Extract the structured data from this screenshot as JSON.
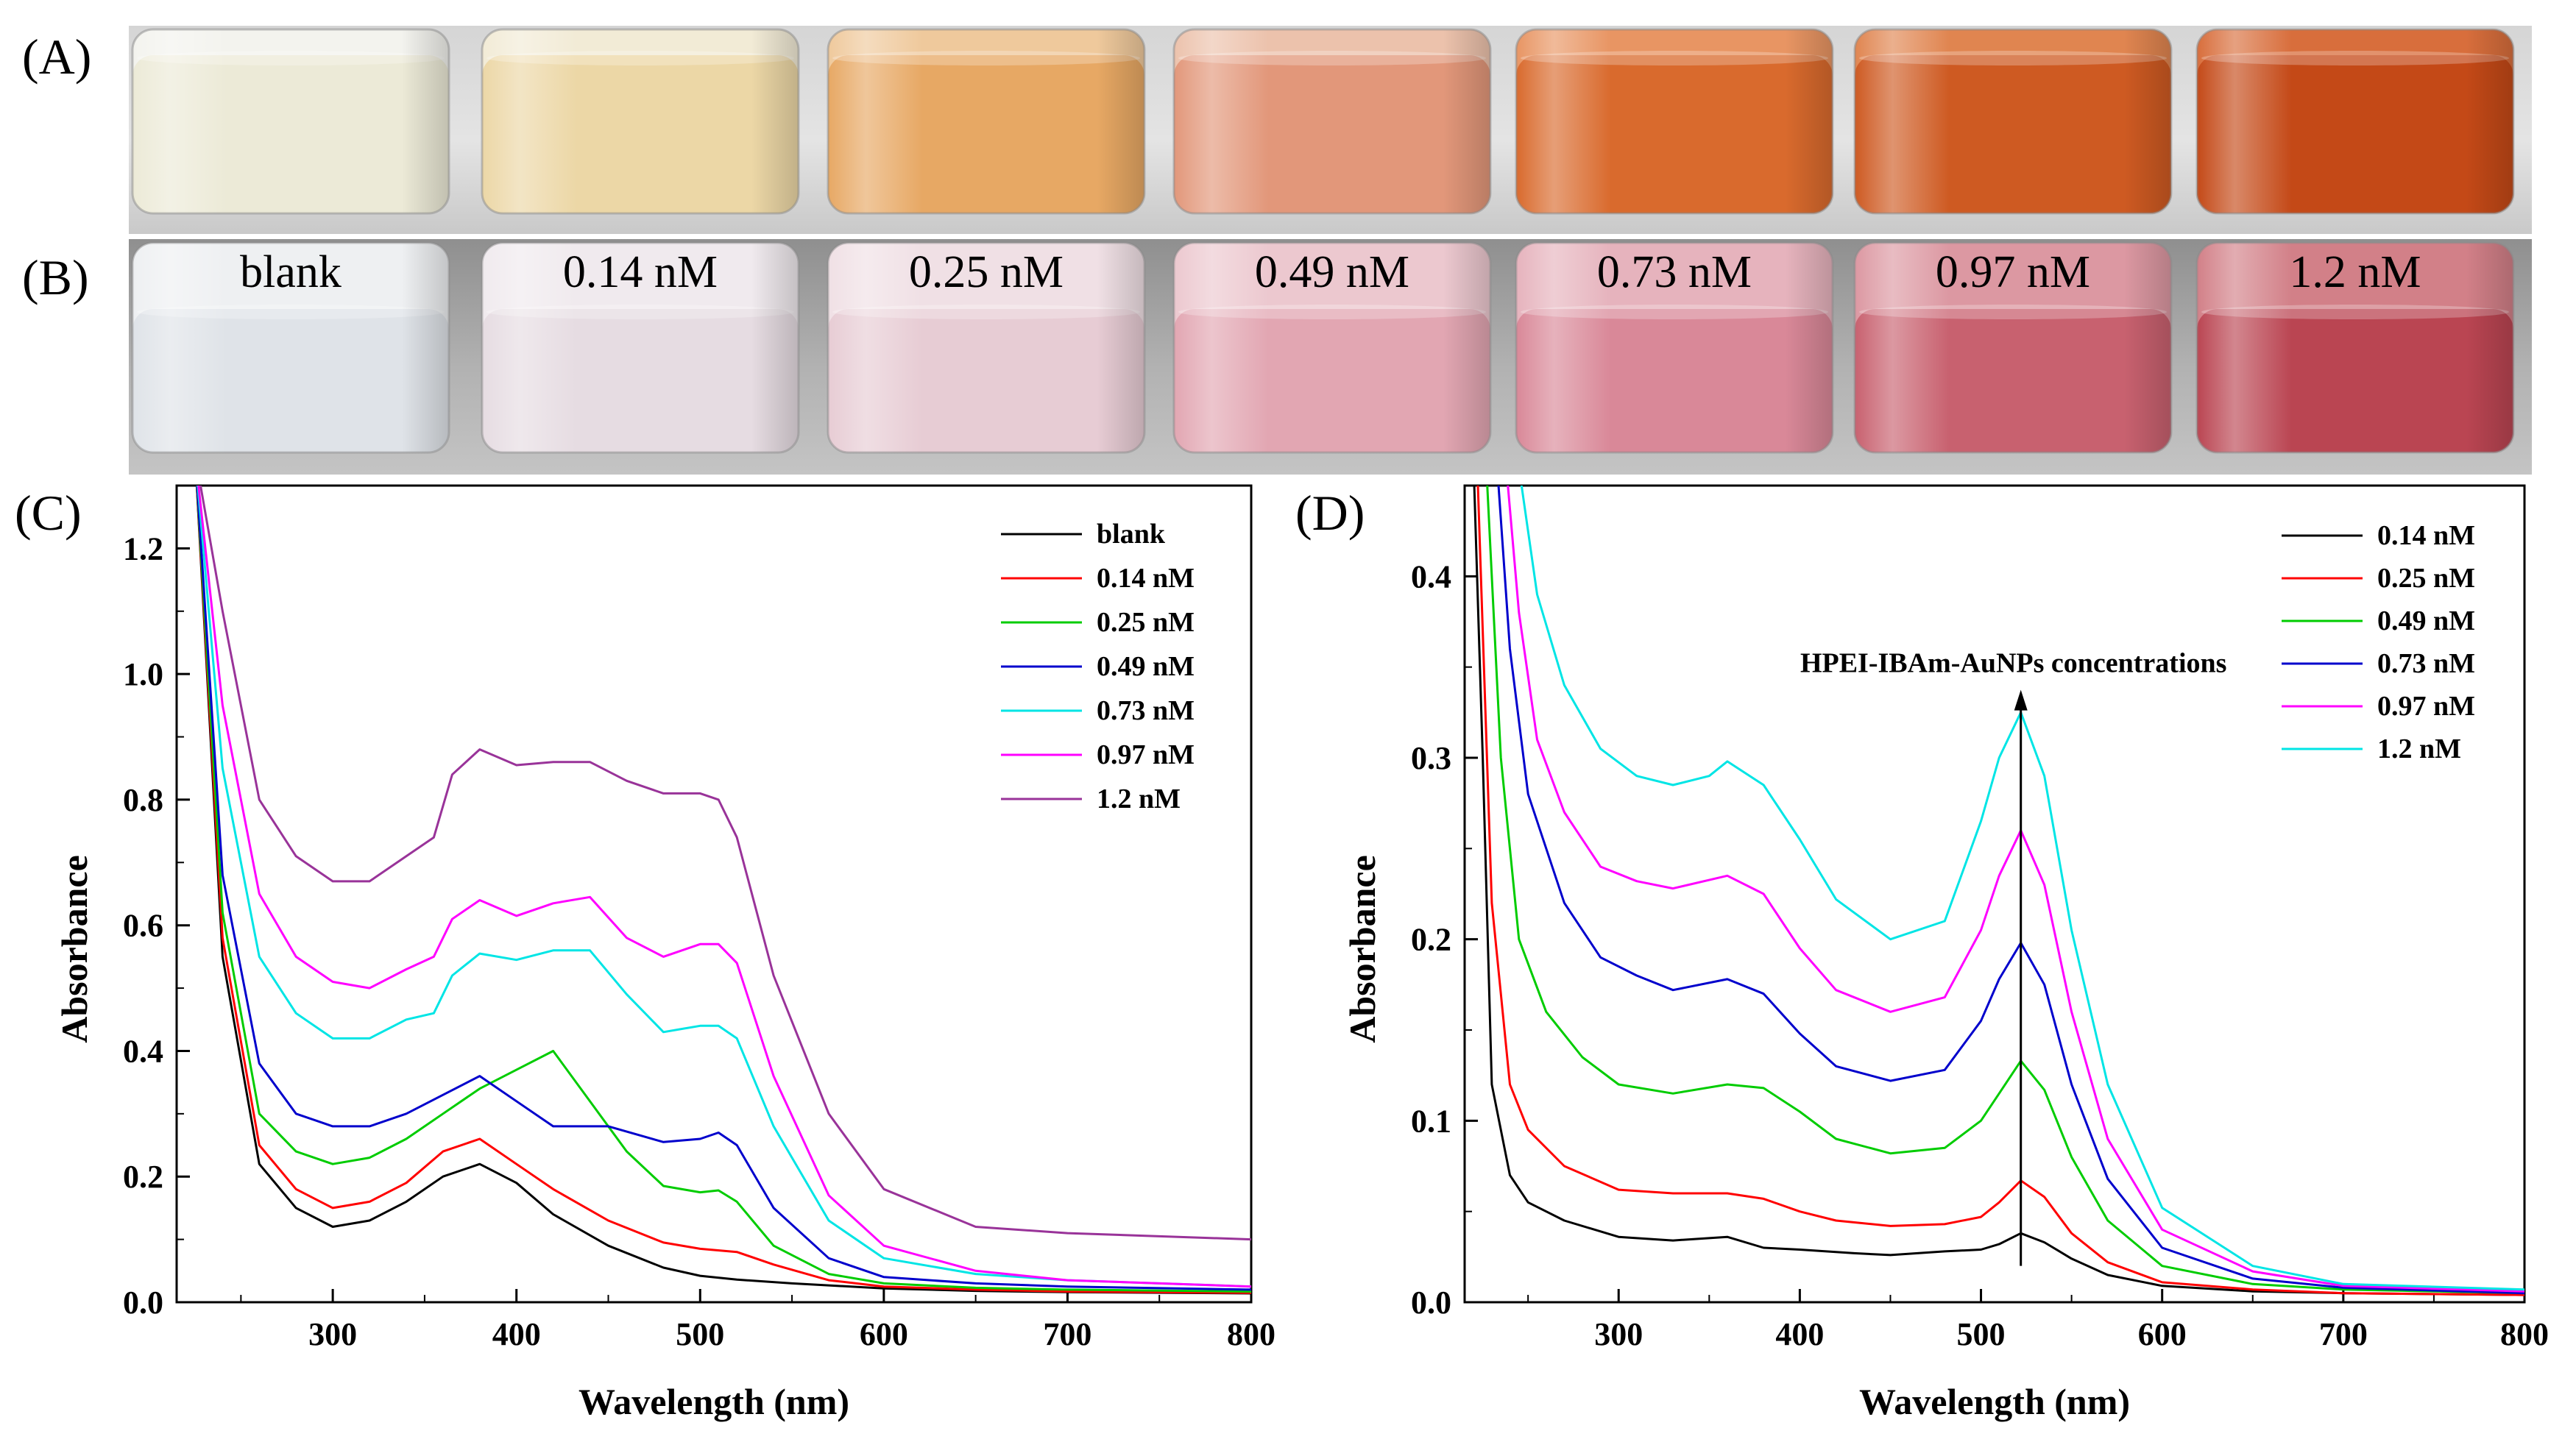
{
  "photo_panels": [
    {
      "letter": "(A)",
      "labels": [],
      "vials": [
        {
          "liquid": "#ecead7",
          "glass": "#f3f3ee"
        },
        {
          "liquid": "#ecd7a6",
          "glass": "#f2ebd6"
        },
        {
          "liquid": "#e7a864",
          "glass": "#efc99c"
        },
        {
          "liquid": "#e2977a",
          "glass": "#ecc2ac"
        },
        {
          "liquid": "#d96a2d",
          "glass": "#e89563"
        },
        {
          "liquid": "#ce5a22",
          "glass": "#e08550"
        },
        {
          "liquid": "#c44917",
          "glass": "#d86e3c"
        }
      ]
    },
    {
      "letter": "(B)",
      "labels": [
        "blank",
        "0.14 nM",
        "0.25 nM",
        "0.49 nM",
        "0.73 nM",
        "0.97 nM",
        "1.2 nM"
      ],
      "vials": [
        {
          "liquid": "#dfe3e8",
          "glass": "#eef0f2"
        },
        {
          "liquid": "#e6dce2",
          "glass": "#f0eaee"
        },
        {
          "liquid": "#e7ccd4",
          "glass": "#f0e0e5"
        },
        {
          "liquid": "#e2a6b2",
          "glass": "#ecc8cf"
        },
        {
          "liquid": "#d98898",
          "glass": "#e6b3bd"
        },
        {
          "liquid": "#c8616f",
          "glass": "#dc98a2"
        },
        {
          "liquid": "#ba4552",
          "glass": "#d28088"
        }
      ]
    }
  ],
  "chart_data": [
    {
      "panel": "(C)",
      "type": "line",
      "xlabel": "Wavelength (nm)",
      "ylabel": "Absorbance",
      "xlim": [
        215,
        800
      ],
      "ylim": [
        0.0,
        1.3
      ],
      "xticks": [
        300,
        400,
        500,
        600,
        700,
        800
      ],
      "yticks": [
        0.0,
        0.2,
        0.4,
        0.6,
        0.8,
        1.0,
        1.2
      ],
      "ytick_labels": [
        "0.0",
        "0.2",
        "0.4",
        "0.6",
        "0.8",
        "1.0",
        "1.2"
      ],
      "xtick_labels": [
        "300",
        "400",
        "500",
        "600",
        "700",
        "800"
      ],
      "legend_position": "top-right",
      "series": [
        {
          "name": "blank",
          "color": "#000000",
          "x": [
            225,
            240,
            260,
            280,
            300,
            320,
            340,
            360,
            380,
            400,
            420,
            450,
            480,
            500,
            520,
            550,
            600,
            650,
            700,
            800
          ],
          "y": [
            1.35,
            0.55,
            0.22,
            0.15,
            0.12,
            0.13,
            0.16,
            0.2,
            0.22,
            0.19,
            0.14,
            0.09,
            0.055,
            0.042,
            0.036,
            0.03,
            0.022,
            0.018,
            0.016,
            0.014
          ]
        },
        {
          "name": "0.14 nM",
          "color": "#ff0000",
          "x": [
            225,
            240,
            260,
            280,
            300,
            320,
            340,
            360,
            380,
            400,
            420,
            450,
            480,
            500,
            520,
            540,
            570,
            600,
            650,
            700,
            800
          ],
          "y": [
            1.35,
            0.58,
            0.25,
            0.18,
            0.15,
            0.16,
            0.19,
            0.24,
            0.26,
            0.22,
            0.18,
            0.13,
            0.095,
            0.085,
            0.08,
            0.06,
            0.035,
            0.025,
            0.02,
            0.017,
            0.015
          ]
        },
        {
          "name": "0.25 nM",
          "color": "#00cc00",
          "x": [
            225,
            240,
            260,
            280,
            300,
            320,
            340,
            360,
            380,
            400,
            420,
            440,
            460,
            480,
            500,
            510,
            520,
            540,
            570,
            600,
            650,
            700,
            800
          ],
          "y": [
            1.35,
            0.62,
            0.3,
            0.24,
            0.22,
            0.23,
            0.26,
            0.3,
            0.34,
            0.37,
            0.4,
            0.32,
            0.24,
            0.185,
            0.175,
            0.178,
            0.16,
            0.09,
            0.045,
            0.03,
            0.023,
            0.02,
            0.017
          ]
        },
        {
          "name": "0.49 nM",
          "color": "#0000cc",
          "x": [
            225,
            240,
            260,
            280,
            300,
            320,
            340,
            360,
            380,
            400,
            420,
            450,
            480,
            500,
            510,
            520,
            540,
            570,
            600,
            650,
            700,
            800
          ],
          "y": [
            1.35,
            0.68,
            0.38,
            0.3,
            0.28,
            0.28,
            0.3,
            0.33,
            0.36,
            0.32,
            0.28,
            0.28,
            0.255,
            0.26,
            0.27,
            0.25,
            0.15,
            0.07,
            0.04,
            0.03,
            0.025,
            0.02
          ]
        },
        {
          "name": "0.73 nM",
          "color": "#00e5e5",
          "x": [
            225,
            240,
            260,
            280,
            300,
            320,
            340,
            355,
            365,
            380,
            400,
            420,
            440,
            460,
            480,
            500,
            510,
            520,
            540,
            570,
            600,
            650,
            700,
            800
          ],
          "y": [
            1.35,
            0.85,
            0.55,
            0.46,
            0.42,
            0.42,
            0.45,
            0.46,
            0.52,
            0.555,
            0.545,
            0.56,
            0.56,
            0.49,
            0.43,
            0.44,
            0.44,
            0.42,
            0.28,
            0.13,
            0.07,
            0.045,
            0.035,
            0.025
          ]
        },
        {
          "name": "0.97 nM",
          "color": "#ff00ff",
          "x": [
            225,
            240,
            260,
            280,
            300,
            320,
            340,
            355,
            365,
            380,
            400,
            420,
            440,
            460,
            480,
            500,
            510,
            520,
            540,
            570,
            600,
            650,
            700,
            800
          ],
          "y": [
            1.35,
            0.95,
            0.65,
            0.55,
            0.51,
            0.5,
            0.53,
            0.55,
            0.61,
            0.64,
            0.615,
            0.635,
            0.645,
            0.58,
            0.55,
            0.57,
            0.57,
            0.54,
            0.36,
            0.17,
            0.09,
            0.05,
            0.035,
            0.025
          ]
        },
        {
          "name": "1.2 nM",
          "color": "#993399",
          "x": [
            225,
            240,
            260,
            280,
            300,
            320,
            340,
            355,
            365,
            380,
            400,
            420,
            440,
            460,
            480,
            500,
            510,
            520,
            540,
            570,
            600,
            650,
            700,
            800
          ],
          "y": [
            1.35,
            1.1,
            0.8,
            0.71,
            0.67,
            0.67,
            0.71,
            0.74,
            0.84,
            0.88,
            0.855,
            0.86,
            0.86,
            0.83,
            0.81,
            0.81,
            0.8,
            0.74,
            0.52,
            0.3,
            0.18,
            0.12,
            0.11,
            0.1
          ]
        }
      ]
    },
    {
      "panel": "(D)",
      "type": "line",
      "xlabel": "Wavelength (nm)",
      "ylabel": "Absorbance",
      "xlim": [
        215,
        800
      ],
      "ylim": [
        0.0,
        0.45
      ],
      "xticks": [
        300,
        400,
        500,
        600,
        700,
        800
      ],
      "yticks": [
        0.0,
        0.1,
        0.2,
        0.3,
        0.4
      ],
      "ytick_labels": [
        "0.0",
        "0.1",
        "0.2",
        "0.3",
        "0.4"
      ],
      "xtick_labels": [
        "300",
        "400",
        "500",
        "600",
        "700",
        "800"
      ],
      "legend_position": "top-right",
      "annotation": {
        "text": "HPEI-IBAm-AuNPs concentrations",
        "x": 522,
        "y_from": 0.02,
        "y_to": 0.335
      },
      "series": [
        {
          "name": "0.14 nM",
          "color": "#000000",
          "x": [
            220,
            225,
            230,
            240,
            250,
            270,
            300,
            330,
            360,
            380,
            400,
            430,
            450,
            480,
            500,
            510,
            522,
            535,
            550,
            570,
            600,
            650,
            700,
            800
          ],
          "y": [
            0.46,
            0.3,
            0.12,
            0.07,
            0.055,
            0.045,
            0.036,
            0.034,
            0.036,
            0.03,
            0.029,
            0.027,
            0.026,
            0.028,
            0.029,
            0.032,
            0.038,
            0.033,
            0.024,
            0.015,
            0.009,
            0.006,
            0.005,
            0.004
          ]
        },
        {
          "name": "0.25 nM",
          "color": "#ff0000",
          "x": [
            222,
            230,
            240,
            250,
            270,
            300,
            330,
            360,
            380,
            400,
            420,
            450,
            480,
            500,
            510,
            522,
            535,
            550,
            570,
            600,
            650,
            700,
            800
          ],
          "y": [
            0.46,
            0.22,
            0.12,
            0.095,
            0.075,
            0.062,
            0.06,
            0.06,
            0.057,
            0.05,
            0.045,
            0.042,
            0.043,
            0.047,
            0.055,
            0.067,
            0.058,
            0.038,
            0.022,
            0.011,
            0.007,
            0.005,
            0.004
          ]
        },
        {
          "name": "0.49 nM",
          "color": "#00cc00",
          "x": [
            227,
            235,
            245,
            260,
            280,
            300,
            330,
            360,
            380,
            400,
            420,
            450,
            480,
            500,
            510,
            522,
            535,
            550,
            570,
            600,
            650,
            700,
            800
          ],
          "y": [
            0.46,
            0.3,
            0.2,
            0.16,
            0.135,
            0.12,
            0.115,
            0.12,
            0.118,
            0.105,
            0.09,
            0.082,
            0.085,
            0.1,
            0.115,
            0.133,
            0.117,
            0.08,
            0.045,
            0.02,
            0.01,
            0.007,
            0.005
          ]
        },
        {
          "name": "0.73 nM",
          "color": "#0000cc",
          "x": [
            233,
            240,
            250,
            270,
            290,
            310,
            330,
            360,
            380,
            400,
            420,
            450,
            480,
            500,
            510,
            522,
            535,
            550,
            570,
            600,
            650,
            700,
            800
          ],
          "y": [
            0.46,
            0.36,
            0.28,
            0.22,
            0.19,
            0.18,
            0.172,
            0.178,
            0.17,
            0.148,
            0.13,
            0.122,
            0.128,
            0.155,
            0.178,
            0.198,
            0.175,
            0.12,
            0.068,
            0.03,
            0.013,
            0.008,
            0.005
          ]
        },
        {
          "name": "0.97 nM",
          "color": "#ff00ff",
          "x": [
            238,
            245,
            255,
            270,
            290,
            310,
            330,
            360,
            380,
            400,
            420,
            450,
            480,
            500,
            510,
            522,
            535,
            550,
            570,
            600,
            650,
            700,
            800
          ],
          "y": [
            0.46,
            0.38,
            0.31,
            0.27,
            0.24,
            0.232,
            0.228,
            0.235,
            0.225,
            0.195,
            0.172,
            0.16,
            0.168,
            0.205,
            0.235,
            0.26,
            0.23,
            0.16,
            0.09,
            0.04,
            0.017,
            0.009,
            0.006
          ]
        },
        {
          "name": "1.2 nM",
          "color": "#00e5e5",
          "x": [
            245,
            255,
            270,
            290,
            310,
            330,
            350,
            360,
            380,
            400,
            420,
            450,
            480,
            500,
            510,
            522,
            535,
            550,
            570,
            600,
            650,
            700,
            800
          ],
          "y": [
            0.46,
            0.39,
            0.34,
            0.305,
            0.29,
            0.285,
            0.29,
            0.298,
            0.285,
            0.255,
            0.222,
            0.2,
            0.21,
            0.265,
            0.3,
            0.325,
            0.29,
            0.205,
            0.12,
            0.052,
            0.02,
            0.01,
            0.007
          ]
        }
      ]
    }
  ],
  "chart_panel_letters": [
    "(C)",
    "(D)"
  ]
}
